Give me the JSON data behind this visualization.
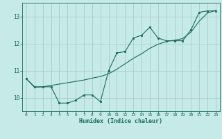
{
  "background_color": "#c5eae8",
  "grid_color": "#a8ccca",
  "line_color": "#1a6b5a",
  "xlabel": "Humidex (Indice chaleur)",
  "xlim": [
    -0.5,
    23.5
  ],
  "ylim": [
    9.5,
    13.5
  ],
  "yticks": [
    10,
    11,
    12,
    13
  ],
  "xticks": [
    0,
    1,
    2,
    3,
    4,
    5,
    6,
    7,
    8,
    9,
    10,
    11,
    12,
    13,
    14,
    15,
    16,
    17,
    18,
    19,
    20,
    21,
    22,
    23
  ],
  "series1_x": [
    0,
    1,
    2,
    3,
    4,
    5,
    6,
    7,
    8,
    9,
    10,
    11,
    12,
    13,
    14,
    15,
    16,
    17,
    18,
    19,
    20,
    21,
    22,
    23
  ],
  "series1_y": [
    10.7,
    10.4,
    10.4,
    10.4,
    9.8,
    9.8,
    9.9,
    10.1,
    10.1,
    9.85,
    11.0,
    11.65,
    11.7,
    12.2,
    12.3,
    12.6,
    12.2,
    12.1,
    12.1,
    12.1,
    12.5,
    13.15,
    13.2,
    13.2
  ],
  "series2_x": [
    0,
    1,
    2,
    3,
    4,
    5,
    6,
    7,
    8,
    9,
    10,
    11,
    12,
    13,
    14,
    15,
    16,
    17,
    18,
    19,
    20,
    21,
    22,
    23
  ],
  "series2_y": [
    10.7,
    10.38,
    10.4,
    10.45,
    10.5,
    10.55,
    10.6,
    10.65,
    10.72,
    10.78,
    10.88,
    11.05,
    11.25,
    11.45,
    11.62,
    11.82,
    11.97,
    12.07,
    12.12,
    12.18,
    12.42,
    12.82,
    13.12,
    13.22
  ]
}
